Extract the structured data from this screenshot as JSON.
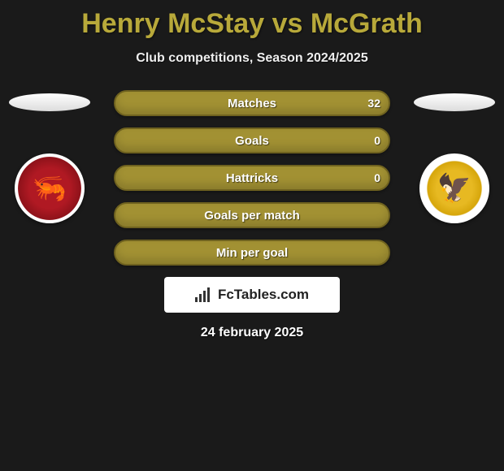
{
  "title": "Henry McStay vs McGrath",
  "subtitle": "Club competitions, Season 2024/2025",
  "colors": {
    "accent": "#b8a93a",
    "row_bg": "#a29133",
    "row_border": "#6f621f",
    "background": "#1a1a1a",
    "left_crest_primary": "#b01923",
    "right_crest_primary": "#e7b922"
  },
  "stats": {
    "type": "table",
    "columns": [
      "left_value",
      "label",
      "right_value"
    ],
    "rows": [
      {
        "label": "Matches",
        "left": "",
        "right": "32"
      },
      {
        "label": "Goals",
        "left": "",
        "right": "0"
      },
      {
        "label": "Hattricks",
        "left": "",
        "right": "0"
      },
      {
        "label": "Goals per match",
        "left": "",
        "right": ""
      },
      {
        "label": "Min per goal",
        "left": "",
        "right": ""
      }
    ]
  },
  "footer_brand": "FcTables.com",
  "date": "24 february 2025",
  "left_player": {
    "crest_icon": "shrimp-icon"
  },
  "right_player": {
    "crest_icon": "eagle-icon"
  }
}
